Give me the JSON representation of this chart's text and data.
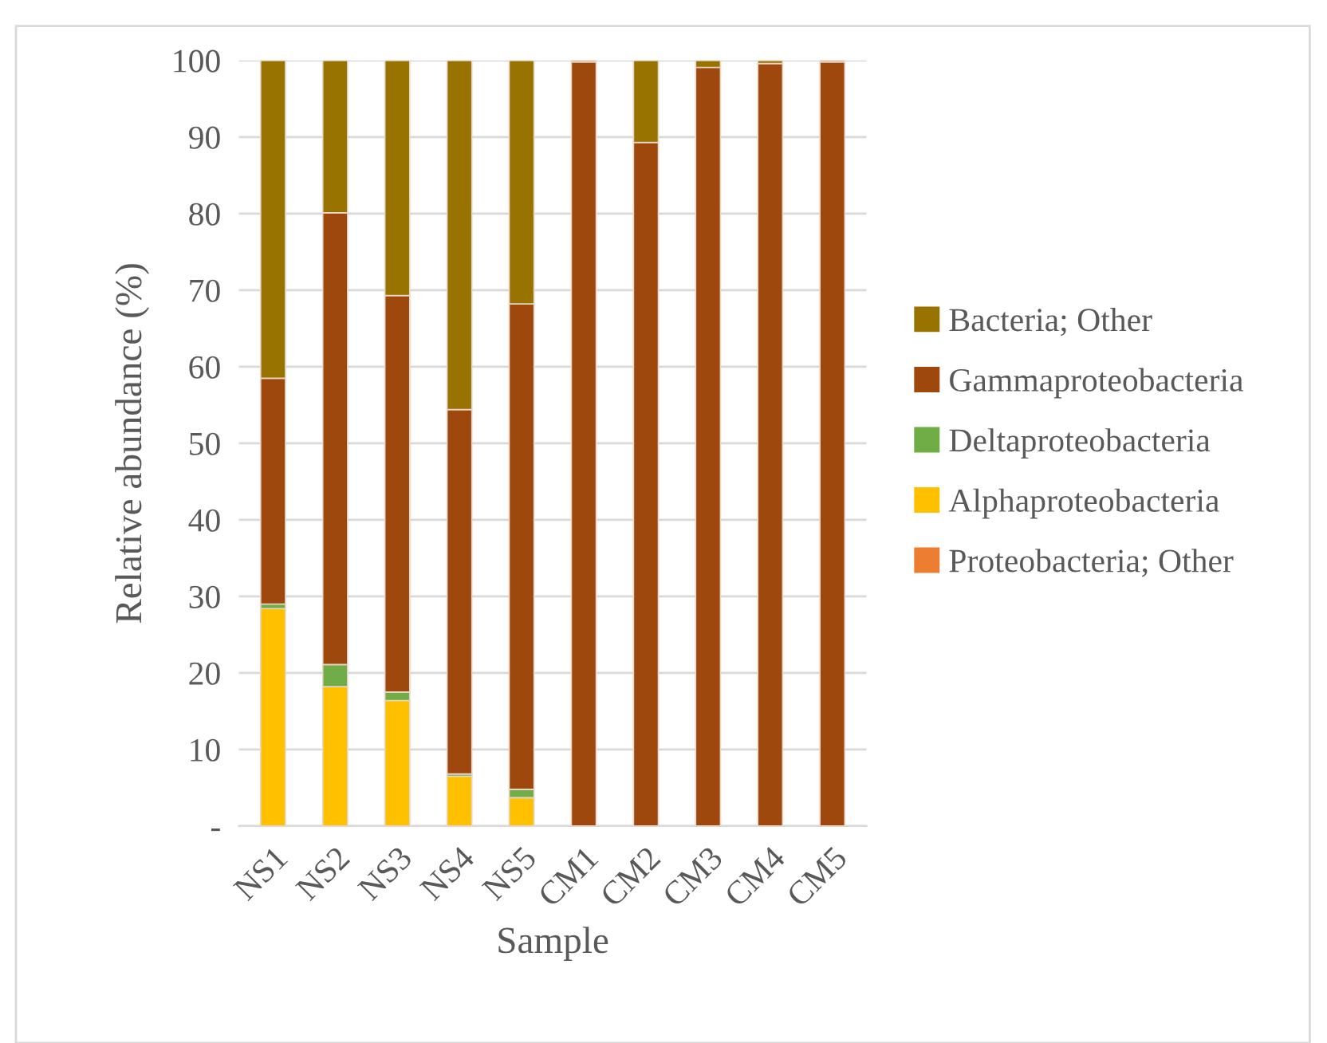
{
  "chart_data": {
    "type": "bar",
    "stacked": true,
    "xlabel": "Sample",
    "ylabel": "Relative abundance (%)",
    "categories": [
      "NS1",
      "NS2",
      "NS3",
      "NS4",
      "NS5",
      "CM1",
      "CM2",
      "CM3",
      "CM4",
      "CM5"
    ],
    "series": [
      {
        "name": "Proteobacteria; Other",
        "color": "#ed7d31",
        "values": [
          0,
          0,
          0,
          0,
          0,
          0,
          0,
          0,
          0,
          0
        ]
      },
      {
        "name": "Alphaproteobacteria",
        "color": "#ffc000",
        "values": [
          28.4,
          18.2,
          16.4,
          6.5,
          3.7,
          0,
          0,
          0,
          0,
          0
        ]
      },
      {
        "name": "Deltaproteobacteria",
        "color": "#70ad47",
        "values": [
          0.6,
          2.9,
          1.1,
          0.3,
          1.1,
          0,
          0,
          0,
          0,
          0
        ]
      },
      {
        "name": "Gammaproteobacteria",
        "color": "#9e480e",
        "values": [
          29.5,
          59.0,
          51.8,
          47.6,
          63.4,
          99.8,
          89.3,
          99.1,
          99.6,
          99.8
        ]
      },
      {
        "name": "Bacteria; Other",
        "color": "#997300",
        "values": [
          41.5,
          19.9,
          30.7,
          45.6,
          31.8,
          0.2,
          10.7,
          0.9,
          0.4,
          0.2
        ]
      }
    ],
    "ylim": [
      0,
      100
    ],
    "yticks": [
      {
        "value": 0,
        "label": "-"
      },
      10,
      20,
      30,
      40,
      50,
      60,
      70,
      80,
      90,
      100
    ],
    "grid": "y",
    "legend": "right"
  }
}
